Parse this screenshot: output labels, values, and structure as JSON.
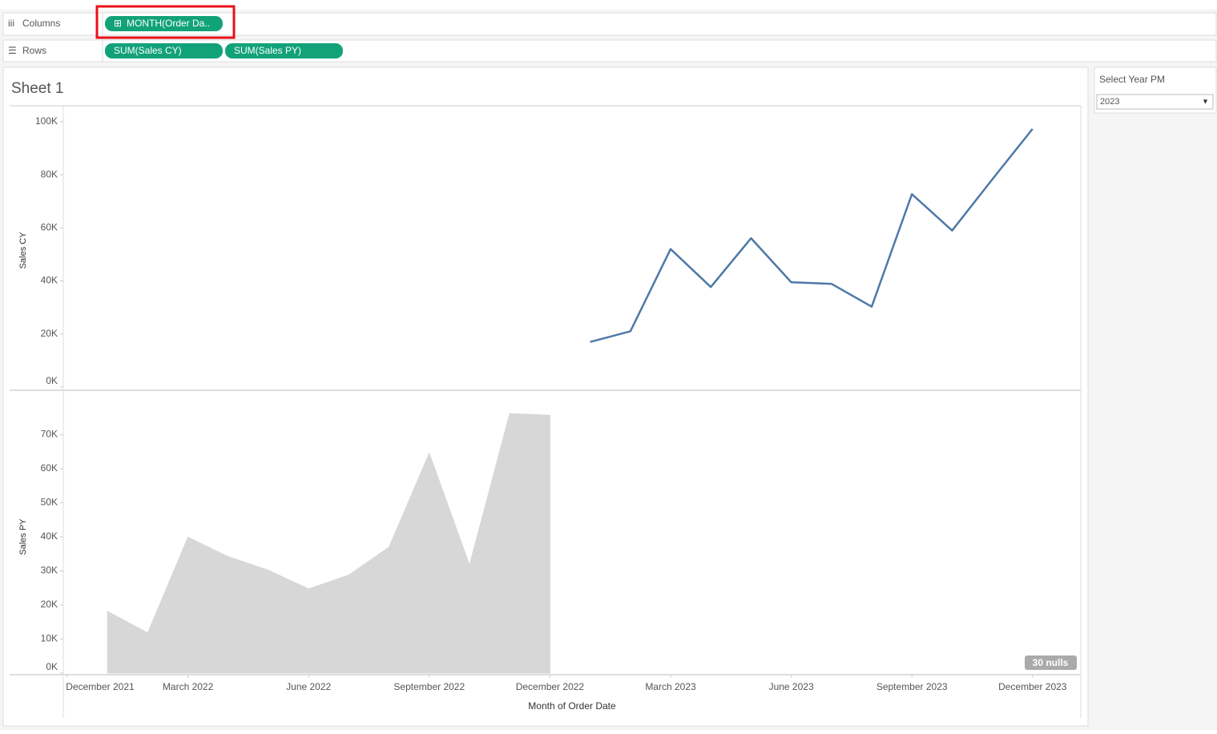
{
  "toolbar": {
    "columns_label": "Columns",
    "columns_pill": "MONTH(Order Da..",
    "rows_label": "Rows",
    "rows_pills": [
      "SUM(Sales CY)",
      "SUM(Sales PY)"
    ]
  },
  "sheet": {
    "title": "Sheet 1"
  },
  "filter": {
    "title": "Select Year PM",
    "value": "2023"
  },
  "nulls_badge": "30 nulls",
  "chart_data": [
    {
      "type": "line",
      "ylabel": "Sales CY",
      "color": "#4e79a7",
      "x": [
        "2023-01",
        "2023-02",
        "2023-03",
        "2023-04",
        "2023-05",
        "2023-06",
        "2023-07",
        "2023-08",
        "2023-09",
        "2023-10",
        "2023-11",
        "2023-12"
      ],
      "values": [
        17000,
        21000,
        52000,
        37700,
        56100,
        39500,
        38900,
        30300,
        72700,
        59000,
        78300,
        97300
      ],
      "xlim": [
        "2021-12",
        "2024-01"
      ],
      "ylim": [
        0,
        103000
      ],
      "yticks": [
        {
          "value": 0,
          "label": "0K"
        },
        {
          "value": 20000,
          "label": "20K"
        },
        {
          "value": 40000,
          "label": "40K"
        },
        {
          "value": 60000,
          "label": "60K"
        },
        {
          "value": 80000,
          "label": "80K"
        },
        {
          "value": 100000,
          "label": "100K"
        }
      ]
    },
    {
      "type": "area",
      "ylabel": "Sales PY",
      "xlabel": "Month of Order Date",
      "color": "#d7d7d7",
      "x": [
        "2022-01",
        "2022-02",
        "2022-03",
        "2022-04",
        "2022-05",
        "2022-06",
        "2022-07",
        "2022-08",
        "2022-09",
        "2022-10",
        "2022-11",
        "2022-12"
      ],
      "values": [
        18100,
        11800,
        39900,
        34200,
        30200,
        24700,
        28800,
        37000,
        64600,
        31700,
        76200,
        75700
      ],
      "xlim": [
        "2021-12",
        "2024-01"
      ],
      "ylim": [
        0,
        80000
      ],
      "yticks": [
        {
          "value": 0,
          "label": "0K"
        },
        {
          "value": 10000,
          "label": "10K"
        },
        {
          "value": 20000,
          "label": "20K"
        },
        {
          "value": 30000,
          "label": "30K"
        },
        {
          "value": 40000,
          "label": "40K"
        },
        {
          "value": 50000,
          "label": "50K"
        },
        {
          "value": 60000,
          "label": "60K"
        },
        {
          "value": 70000,
          "label": "70K"
        }
      ],
      "xticks": [
        {
          "value": "2021-12",
          "label": "December 2021"
        },
        {
          "value": "2022-03",
          "label": "March 2022"
        },
        {
          "value": "2022-06",
          "label": "June 2022"
        },
        {
          "value": "2022-09",
          "label": "September 2022"
        },
        {
          "value": "2022-12",
          "label": "December 2022"
        },
        {
          "value": "2023-03",
          "label": "March 2023"
        },
        {
          "value": "2023-06",
          "label": "June 2023"
        },
        {
          "value": "2023-09",
          "label": "September 2023"
        },
        {
          "value": "2023-12",
          "label": "December 2023"
        }
      ]
    }
  ]
}
